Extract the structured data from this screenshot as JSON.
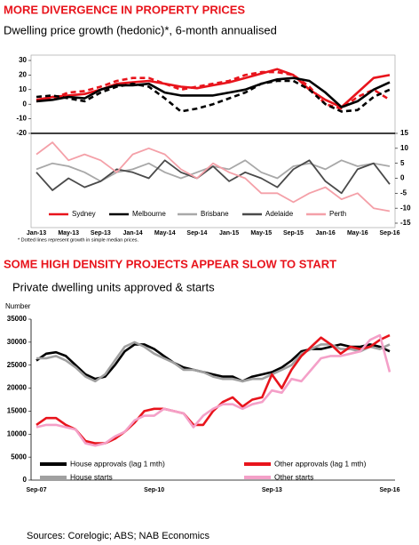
{
  "chart_data": [
    {
      "type": "line",
      "title": "MORE DIVERGENCE IN PROPERTY PRICES",
      "subtitle": "Dwelling price growth (hedonic)*, 6-month annualised",
      "footnote": "* Dotted lines represent growth in simple median prices.",
      "categories": [
        "Jan-13",
        null,
        "May-13",
        null,
        "Sep-13",
        null,
        "Jan-14",
        null,
        "May-14",
        null,
        "Sep-14",
        null,
        "Jan-15",
        null,
        "May-15",
        null,
        "Sep-15",
        null,
        "Jan-16",
        null,
        "May-16",
        null,
        "Sep-16"
      ],
      "ylim": [
        -20,
        30
      ],
      "yticks": [
        30,
        20,
        10,
        0,
        -10,
        -20
      ],
      "y2lim": [
        -15,
        15
      ],
      "y2ticks": [
        15,
        10,
        5,
        0,
        -5,
        -10,
        -15
      ],
      "series": [
        {
          "name": "Sydney",
          "color": "#e8141c",
          "values": [
            3,
            5,
            6,
            7,
            10,
            14,
            15,
            16,
            14,
            12,
            11,
            13,
            15,
            18,
            21,
            24,
            20,
            10,
            3,
            -2,
            8,
            18,
            20
          ]
        },
        {
          "color": "#e8141c",
          "dashed": true,
          "values": [
            2,
            4,
            8,
            9,
            12,
            16,
            18,
            18,
            14,
            10,
            12,
            14,
            16,
            20,
            22,
            22,
            20,
            12,
            0,
            -3,
            5,
            10,
            3
          ]
        },
        {
          "name": "Melbourne",
          "color": "#000000",
          "values": [
            2,
            3,
            5,
            4,
            10,
            13,
            13,
            14,
            8,
            6,
            6,
            6,
            8,
            10,
            14,
            17,
            18,
            16,
            8,
            -2,
            2,
            10,
            15
          ]
        },
        {
          "color": "#000000",
          "dashed": true,
          "values": [
            5,
            6,
            4,
            2,
            8,
            12,
            14,
            12,
            4,
            -5,
            -3,
            0,
            4,
            8,
            14,
            16,
            16,
            10,
            0,
            -5,
            -4,
            5,
            10
          ]
        },
        {
          "name": "Brisbane",
          "color": "#a8a8a8",
          "axis": "y2",
          "values": [
            3,
            5,
            4,
            2,
            -1,
            2,
            3,
            5,
            2,
            0,
            2,
            4,
            3,
            6,
            2,
            0,
            4,
            5,
            3,
            6,
            4,
            5,
            4
          ]
        },
        {
          "name": "Adelaide",
          "color": "#4a4a4a",
          "axis": "y2",
          "values": [
            2,
            -4,
            0,
            -3,
            -1,
            3,
            2,
            0,
            6,
            2,
            0,
            4,
            -1,
            2,
            0,
            -3,
            3,
            6,
            -1,
            -5,
            3,
            5,
            -2
          ]
        },
        {
          "name": "Perth",
          "color": "#f4a0a8",
          "axis": "y2",
          "values": [
            8,
            12,
            6,
            8,
            6,
            2,
            8,
            10,
            8,
            3,
            0,
            5,
            2,
            0,
            -5,
            -5,
            -8,
            -5,
            -3,
            -7,
            -5,
            -10,
            -11
          ]
        }
      ]
    },
    {
      "type": "line",
      "title": "SOME HIGH DENSITY PROJECTS APPEAR SLOW TO START",
      "subtitle": "Private dwelling units approved & starts",
      "y_label": "Number",
      "categories": [
        "Sep-07",
        null,
        null,
        null,
        null,
        null,
        null,
        null,
        null,
        null,
        null,
        null,
        "Sep-10",
        null,
        null,
        null,
        null,
        null,
        null,
        null,
        null,
        null,
        null,
        null,
        "Sep-13",
        null,
        null,
        null,
        null,
        null,
        null,
        null,
        null,
        null,
        null,
        null,
        "Sep-16"
      ],
      "ylim": [
        0,
        35000
      ],
      "yticks": [
        0,
        5000,
        10000,
        15000,
        20000,
        25000,
        30000,
        35000
      ],
      "series": [
        {
          "name": "House approvals (lag 1 mth)",
          "color": "#000000",
          "values": [
            26000,
            27500,
            27800,
            27000,
            25000,
            23000,
            22000,
            22500,
            25000,
            28000,
            29500,
            29500,
            28500,
            27000,
            25500,
            24500,
            24000,
            23500,
            23000,
            22500,
            22500,
            21500,
            22500,
            23000,
            23500,
            24500,
            26000,
            28000,
            28500,
            28500,
            29000,
            29500,
            29000,
            29000,
            29500,
            29000,
            28000
          ]
        },
        {
          "name": "House starts",
          "color": "#a0a0a0",
          "values": [
            26500,
            26500,
            27000,
            26000,
            24500,
            22500,
            21500,
            23000,
            26000,
            29000,
            30000,
            29000,
            27500,
            26500,
            25500,
            24000,
            24000,
            23500,
            22500,
            22000,
            22000,
            21500,
            22000,
            22000,
            23000,
            24000,
            25000,
            27500,
            28500,
            29500,
            29500,
            28500,
            28500,
            28000,
            29000,
            28500,
            29500
          ]
        },
        {
          "name": "Other approvals (lag 1 mth)",
          "color": "#e8141c",
          "values": [
            12000,
            13500,
            13500,
            12000,
            11000,
            8500,
            8000,
            8000,
            9000,
            10500,
            12500,
            15000,
            15500,
            15500,
            15000,
            14500,
            12000,
            12000,
            15000,
            17000,
            18000,
            16000,
            17500,
            18000,
            23000,
            20000,
            24000,
            27000,
            29000,
            31000,
            29500,
            27500,
            29000,
            28500,
            29000,
            30500,
            31500
          ]
        },
        {
          "name": "Other starts",
          "color": "#f4a0c8",
          "values": [
            11500,
            12000,
            12000,
            11500,
            11000,
            8000,
            7500,
            8000,
            9500,
            10500,
            13000,
            14000,
            14000,
            15500,
            15000,
            14500,
            11500,
            14000,
            15500,
            16500,
            16500,
            15500,
            16500,
            17000,
            19500,
            19000,
            22000,
            21500,
            24000,
            26500,
            27000,
            27000,
            27500,
            28000,
            30500,
            31500,
            23500
          ]
        }
      ]
    }
  ],
  "source": "Sources: Corelogic; ABS; NAB Economics"
}
